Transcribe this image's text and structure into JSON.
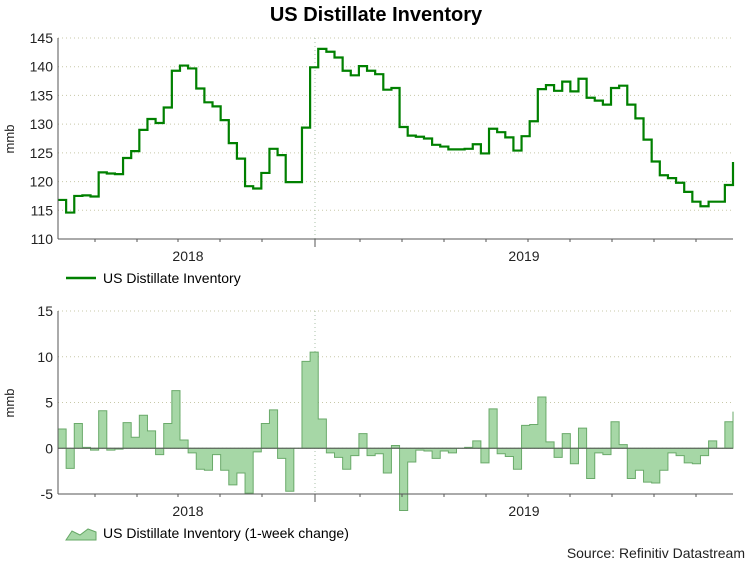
{
  "chart_data": [
    {
      "type": "line",
      "title": "US Distillate Inventory",
      "ylabel": "mmb",
      "xlabel": "",
      "ylim": [
        110,
        145
      ],
      "yticks": [
        110,
        115,
        120,
        125,
        130,
        135,
        140,
        145
      ],
      "xtick_labels": [
        "2018",
        "2019"
      ],
      "grid": true,
      "legend": "bottom-left",
      "series": [
        {
          "name": "US Distillate Inventory",
          "color": "#008000",
          "step": true,
          "values": [
            116.8,
            114.6,
            117.5,
            117.6,
            117.4,
            121.6,
            121.4,
            121.3,
            124.1,
            125.3,
            129.0,
            130.9,
            130.2,
            132.9,
            139.3,
            140.2,
            139.7,
            136.2,
            133.8,
            133.1,
            130.7,
            126.7,
            124.0,
            119.2,
            118.8,
            121.5,
            125.7,
            124.6,
            119.9,
            119.9,
            129.4,
            139.9,
            143.1,
            142.6,
            141.6,
            139.3,
            138.5,
            140.1,
            139.3,
            138.7,
            136.0,
            136.3,
            129.5,
            128.0,
            127.8,
            127.5,
            126.4,
            126.1,
            125.6,
            125.6,
            125.7,
            126.5,
            124.9,
            129.2,
            128.6,
            127.7,
            125.4,
            127.9,
            130.5,
            136.1,
            136.8,
            135.8,
            137.4,
            135.7,
            137.9,
            134.6,
            134.1,
            133.4,
            136.3,
            136.7,
            133.4,
            131.0,
            127.3,
            123.5,
            121.1,
            120.6,
            119.8,
            118.2,
            116.5,
            115.7,
            116.5,
            116.5,
            119.4,
            123.4
          ]
        }
      ]
    },
    {
      "type": "area",
      "title": "",
      "ylabel": "mmb",
      "xlabel": "",
      "ylim": [
        -5,
        15
      ],
      "yticks": [
        -5,
        0,
        5,
        10,
        15
      ],
      "xtick_labels": [
        "2018",
        "2019"
      ],
      "grid": true,
      "legend": "bottom-left",
      "series": [
        {
          "name": "US Distillate Inventory (1-week change)",
          "color": "#a6d7a6",
          "values": [
            2.1,
            -2.2,
            2.7,
            0.1,
            -0.2,
            4.1,
            -0.2,
            -0.1,
            2.8,
            1.2,
            3.6,
            1.9,
            -0.7,
            2.7,
            6.3,
            0.9,
            -0.5,
            -2.3,
            -2.4,
            -0.7,
            -2.4,
            -4.0,
            -2.7,
            -4.9,
            -0.4,
            2.7,
            4.2,
            -1.1,
            -4.7,
            0.0,
            9.5,
            10.5,
            3.2,
            -0.5,
            -1.0,
            -2.3,
            -0.8,
            1.6,
            -0.8,
            -0.6,
            -2.7,
            0.3,
            -6.8,
            -1.5,
            -0.2,
            -0.3,
            -1.1,
            -0.3,
            -0.5,
            0.0,
            0.1,
            0.8,
            -1.6,
            4.3,
            -0.6,
            -0.9,
            -2.3,
            2.5,
            2.6,
            5.6,
            0.7,
            -1.0,
            1.6,
            -1.7,
            2.2,
            -3.3,
            -0.5,
            -0.7,
            2.9,
            0.4,
            -3.3,
            -2.4,
            -3.7,
            -3.8,
            -2.4,
            -0.5,
            -0.8,
            -1.6,
            -1.7,
            -0.8,
            0.8,
            0.0,
            2.9,
            4.0
          ]
        }
      ]
    }
  ],
  "source": "Source: Refinitiv Datastream"
}
